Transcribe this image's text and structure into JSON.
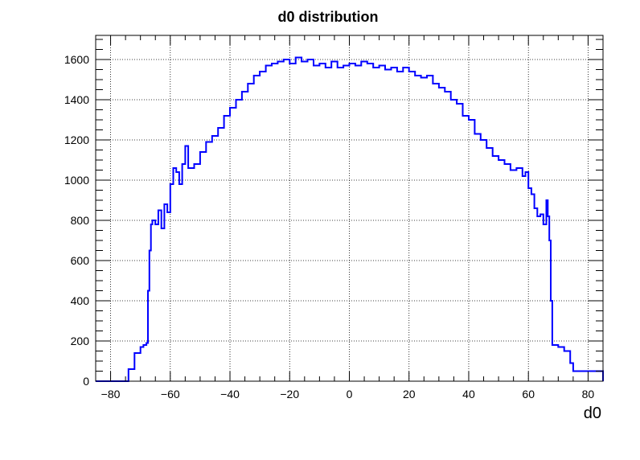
{
  "chart_data": {
    "type": "line",
    "title": "d0 distribution",
    "xlabel": "d0",
    "ylabel": "",
    "xlim": [
      -85,
      85
    ],
    "ylim": [
      0,
      1720
    ],
    "grid": true,
    "x_ticks": [
      -80,
      -60,
      -40,
      -20,
      0,
      20,
      40,
      60,
      80
    ],
    "x_tick_labels": [
      "−80",
      "−60",
      "−40",
      "−20",
      "0",
      "20",
      "40",
      "60",
      "80"
    ],
    "y_ticks": [
      0,
      200,
      400,
      600,
      800,
      1000,
      1200,
      1400,
      1600
    ],
    "y_tick_labels": [
      "0",
      "200",
      "400",
      "600",
      "800",
      "1000",
      "1200",
      "1400",
      "1600"
    ],
    "series": [
      {
        "color": "#0000ff",
        "x": [
          -85,
          -75,
          -74,
          -72,
          -70,
          -69,
          -68,
          -67.5,
          -67,
          -66.5,
          -66,
          -65,
          -64,
          -63,
          -62,
          -61,
          -60,
          -59,
          -58,
          -57,
          -56,
          -55,
          -54,
          -52,
          -50,
          -48,
          -46,
          -44,
          -42,
          -40,
          -38,
          -36,
          -34,
          -32,
          -30,
          -28,
          -26,
          -24,
          -22,
          -20,
          -18,
          -16,
          -14,
          -12,
          -10,
          -8,
          -6,
          -4,
          -2,
          0,
          2,
          4,
          6,
          8,
          10,
          12,
          14,
          16,
          18,
          20,
          22,
          24,
          26,
          28,
          30,
          32,
          34,
          36,
          38,
          40,
          42,
          44,
          46,
          48,
          50,
          52,
          54,
          56,
          58,
          59,
          60,
          61,
          62,
          63,
          64,
          65,
          66,
          66.5,
          67,
          67.5,
          68,
          70,
          72,
          74,
          75,
          85
        ],
        "y": [
          0,
          0,
          60,
          140,
          170,
          180,
          190,
          450,
          650,
          780,
          800,
          780,
          850,
          760,
          880,
          840,
          980,
          1060,
          1040,
          980,
          1080,
          1170,
          1060,
          1080,
          1140,
          1190,
          1220,
          1260,
          1320,
          1360,
          1400,
          1440,
          1480,
          1520,
          1540,
          1570,
          1580,
          1590,
          1600,
          1580,
          1610,
          1590,
          1600,
          1570,
          1580,
          1560,
          1590,
          1560,
          1570,
          1580,
          1570,
          1590,
          1580,
          1560,
          1570,
          1550,
          1560,
          1540,
          1560,
          1540,
          1520,
          1510,
          1520,
          1480,
          1460,
          1440,
          1400,
          1380,
          1320,
          1300,
          1230,
          1200,
          1160,
          1120,
          1100,
          1080,
          1050,
          1060,
          1020,
          1040,
          960,
          930,
          860,
          820,
          830,
          780,
          900,
          820,
          700,
          400,
          180,
          170,
          150,
          90,
          50,
          0
        ]
      }
    ]
  }
}
